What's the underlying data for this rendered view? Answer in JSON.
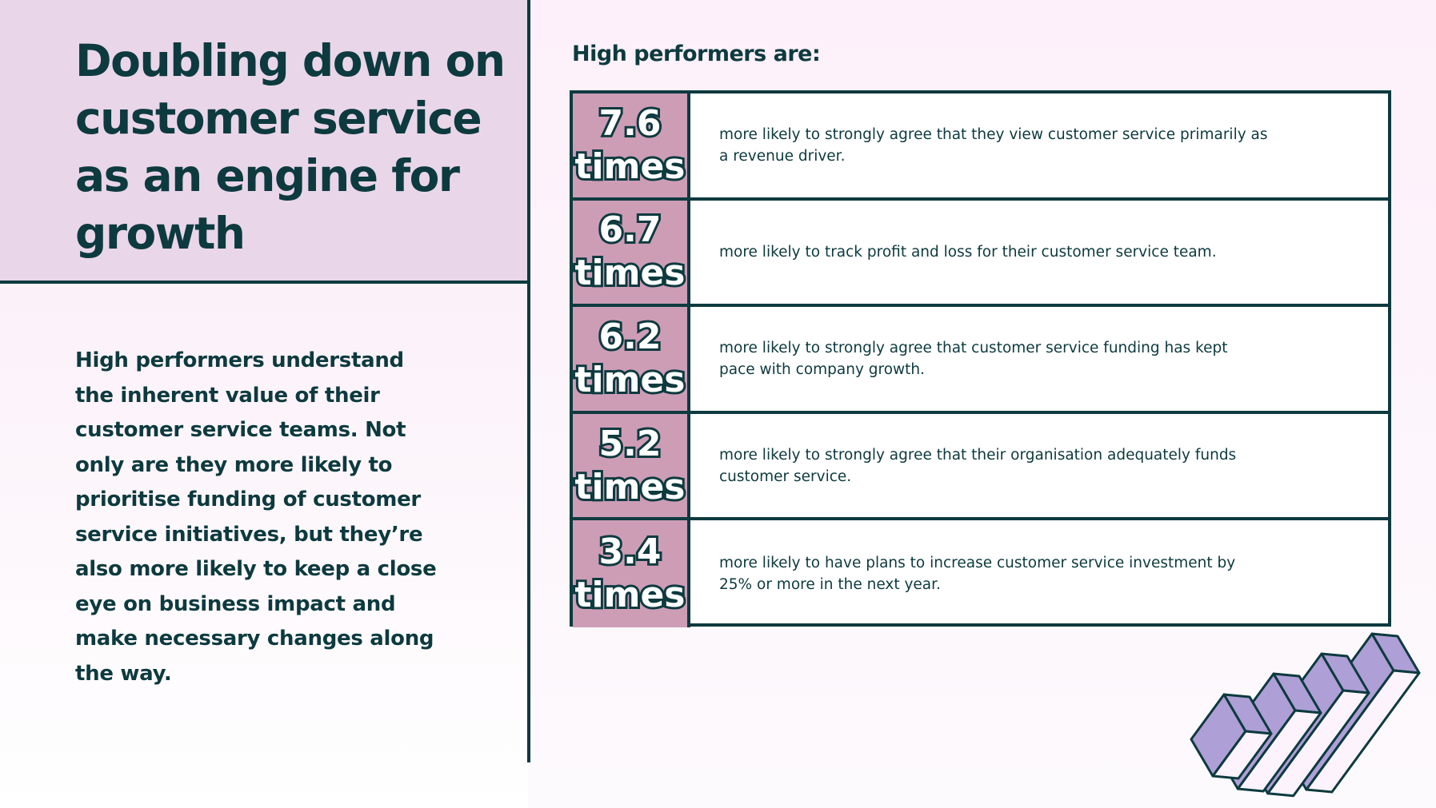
{
  "left": {
    "title": "Doubling down on customer service as an engine for growth",
    "body": "High performers understand the inherent value of their customer service teams. Not only are they more likely to prioritise funding of customer service initiatives, but they’re also more likely to keep a close eye on business impact and make necessary changes along the way."
  },
  "right": {
    "heading": "High performers are:",
    "rows": [
      {
        "value": "7.6",
        "unit": "times",
        "text": "more likely to strongly agree that they view customer service primarily as a revenue driver."
      },
      {
        "value": "6.7",
        "unit": "times",
        "text": "more likely to track profit and loss for their customer service team."
      },
      {
        "value": "6.2",
        "unit": "times",
        "text": "more likely to strongly agree that customer service funding has kept pace with company growth."
      },
      {
        "value": "5.2",
        "unit": "times",
        "text": "more likely to strongly agree that their organisation adequately funds customer service."
      },
      {
        "value": "3.4",
        "unit": "times",
        "text": "more likely to have plans to increase customer service investment by 25% or more in the next year."
      }
    ]
  },
  "colors": {
    "dark": "#0d3a3f",
    "number_cell": "#cd9db6",
    "bar_purple": "#ae9fd6",
    "bar_light": "#fcf3fc",
    "panel": "#ead6e9"
  },
  "decoration": {
    "icon": "3d-bar-chart-icon"
  }
}
